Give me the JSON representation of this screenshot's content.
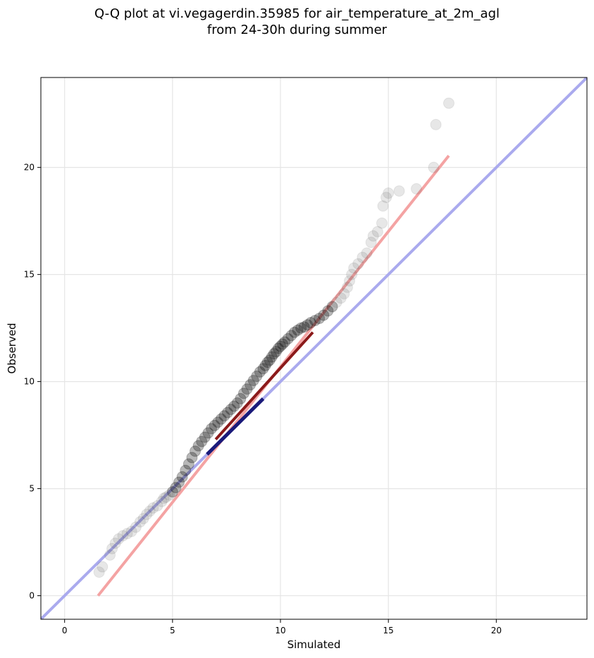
{
  "chart_data": {
    "type": "scatter",
    "title_lines": [
      "Q-Q plot at vi.vegagerdin.35985 for air_temperature_at_2m_agl",
      "from 24-30h during summer"
    ],
    "xlabel": "Simulated",
    "ylabel": "Observed",
    "xlim": [
      -1.1,
      24.2
    ],
    "ylim": [
      -1.1,
      24.2
    ],
    "xticks": [
      0,
      5,
      10,
      15,
      20
    ],
    "yticks": [
      0,
      5,
      10,
      15,
      20
    ],
    "grid": true,
    "colors": {
      "points": "#555555",
      "dense_points": "#000000",
      "fit_line": "#f4a3a3",
      "identity_line": "#aaaaee",
      "dense_segment": "#1a1a7a",
      "dense_red": "#8b1a1a",
      "grid": "#e5e5e5"
    },
    "identity_line": [
      [
        -1.1,
        -1.1
      ],
      [
        24.2,
        24.2
      ]
    ],
    "fit_line": [
      [
        1.55,
        0.0
      ],
      [
        17.8,
        20.55
      ]
    ],
    "points_x": [
      1.6,
      1.75,
      2.1,
      2.2,
      2.35,
      2.5,
      2.7,
      2.9,
      3.1,
      3.3,
      3.5,
      3.65,
      3.8,
      3.95,
      4.1,
      4.3,
      4.5,
      4.6,
      4.7,
      4.85,
      5.0,
      5.15,
      5.3,
      5.45,
      5.6,
      5.75,
      5.9,
      6.05,
      6.2,
      6.35,
      6.5,
      6.65,
      6.8,
      6.95,
      7.1,
      7.25,
      7.4,
      7.55,
      7.7,
      7.85,
      8.0,
      8.15,
      8.3,
      8.45,
      8.6,
      8.75,
      8.9,
      9.05,
      9.2,
      9.3,
      9.4,
      9.5,
      9.6,
      9.7,
      9.8,
      9.9,
      10.0,
      10.1,
      10.2,
      10.35,
      10.5,
      10.65,
      10.8,
      10.95,
      11.1,
      11.25,
      11.4,
      11.6,
      11.8,
      12.0,
      12.2,
      12.4,
      12.6,
      12.8,
      12.95,
      13.1,
      13.2,
      13.3,
      13.4,
      13.6,
      13.8,
      14.0,
      14.2,
      14.3,
      14.5,
      14.7,
      14.75,
      14.9,
      15.0,
      15.5,
      16.3,
      17.1,
      17.2,
      17.8
    ],
    "points_y": [
      1.1,
      1.35,
      1.9,
      2.2,
      2.45,
      2.65,
      2.8,
      2.9,
      3.0,
      3.2,
      3.45,
      3.6,
      3.8,
      3.95,
      4.1,
      4.2,
      4.4,
      4.55,
      4.6,
      4.7,
      4.85,
      5.05,
      5.3,
      5.55,
      5.85,
      6.15,
      6.45,
      6.75,
      7.0,
      7.2,
      7.4,
      7.6,
      7.8,
      7.95,
      8.1,
      8.25,
      8.4,
      8.55,
      8.7,
      8.85,
      9.0,
      9.2,
      9.45,
      9.65,
      9.85,
      10.05,
      10.25,
      10.45,
      10.6,
      10.75,
      10.9,
      11.0,
      11.15,
      11.3,
      11.4,
      11.55,
      11.65,
      11.75,
      11.85,
      12.0,
      12.15,
      12.3,
      12.4,
      12.5,
      12.55,
      12.65,
      12.75,
      12.85,
      12.95,
      13.1,
      13.3,
      13.5,
      13.7,
      13.9,
      14.1,
      14.4,
      14.7,
      15.0,
      15.3,
      15.5,
      15.8,
      16.0,
      16.5,
      16.8,
      17.0,
      17.4,
      18.2,
      18.6,
      18.8,
      18.9,
      19.0,
      20.0,
      22.0,
      23.0
    ]
  }
}
